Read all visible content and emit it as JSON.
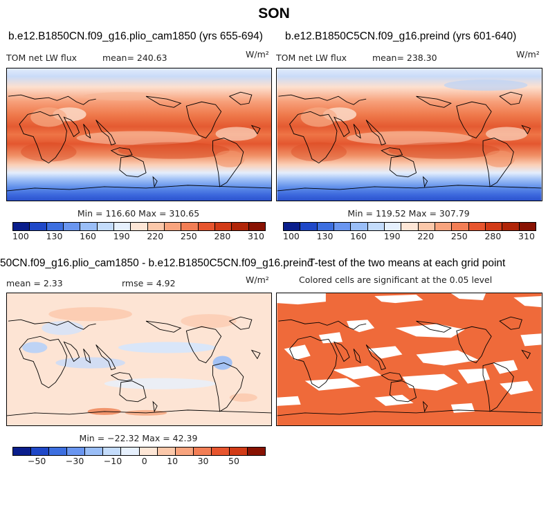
{
  "title": "SON",
  "panels": [
    {
      "title": "b.e12.B1850CN.f09_g16.plio_cam1850 (yrs 655-694)",
      "left_label": "TOM net LW flux",
      "mean_label": "mean= 240.63",
      "units": "W/m²",
      "stats": "Min = 116.60 Max = 310.65"
    },
    {
      "title": "b.e12.B1850C5CN.f09_g16.preind (yrs 601-640)",
      "left_label": "TOM net LW flux",
      "mean_label": "mean= 238.30",
      "units": "W/m²",
      "stats": "Min = 119.52 Max = 307.79"
    },
    {
      "title": "50CN.f09_g16.plio_cam1850 - b.e12.B1850C5CN.f09_g16.preind",
      "mean_label": "mean =   2.33",
      "rmse_label": "rmse =   4.92",
      "units": "W/m²",
      "stats": "Min = −22.32 Max = 42.39"
    },
    {
      "title": "T-test of the two means at each grid point",
      "subtitle": "Colored cells are significant at the 0.05 level"
    }
  ],
  "colorbar_abs": {
    "ticks": [
      "100",
      "130",
      "160",
      "190",
      "220",
      "250",
      "280",
      "310"
    ],
    "colors": [
      "#0a1e8c",
      "#1f48c8",
      "#3d6fe0",
      "#6a96f0",
      "#9abef7",
      "#c4dcfb",
      "#e6f0fd",
      "#fde6d6",
      "#fbc8aa",
      "#f8a47e",
      "#f27e55",
      "#e7552e",
      "#d23b17",
      "#b02508",
      "#881202"
    ]
  },
  "colorbar_diff": {
    "ticks": [
      "−50",
      "−30",
      "−10",
      "0",
      "10",
      "30",
      "50"
    ],
    "colors": [
      "#0a1e8c",
      "#1f48c8",
      "#3d6fe0",
      "#6a96f0",
      "#9abef7",
      "#c4dcfb",
      "#e6f0fd",
      "#fde6d6",
      "#fbc8aa",
      "#f8a47e",
      "#f27e55",
      "#e7552e",
      "#d23b17",
      "#881202"
    ]
  },
  "ttest_color": "#ef6a3a"
}
